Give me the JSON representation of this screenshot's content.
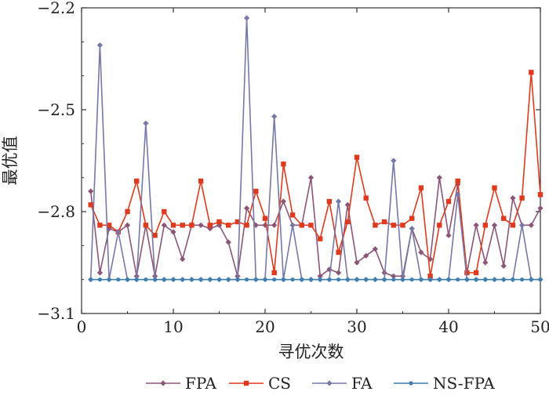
{
  "chart_data": {
    "type": "line",
    "xlabel": "寻优次数",
    "ylabel": "最优值",
    "xlim": [
      0,
      50
    ],
    "ylim": [
      -3.1,
      -2.2
    ],
    "xticks": [
      "0",
      "10",
      "20",
      "30",
      "40",
      "50"
    ],
    "yticks": [
      "-2.2",
      "-2.5",
      "-2.8",
      "-3.1"
    ],
    "yticks_display": [
      "−2.2",
      "−2.5",
      "−2.8",
      "−3.1"
    ],
    "legend_position": "bottom",
    "x": [
      1,
      2,
      3,
      4,
      5,
      6,
      7,
      8,
      9,
      10,
      11,
      12,
      13,
      14,
      15,
      16,
      17,
      18,
      19,
      20,
      21,
      22,
      23,
      24,
      25,
      26,
      27,
      28,
      29,
      30,
      31,
      32,
      33,
      34,
      35,
      36,
      37,
      38,
      39,
      40,
      41,
      42,
      43,
      44,
      45,
      46,
      47,
      48,
      49,
      50
    ],
    "series": [
      {
        "name": "FPA",
        "color": "#8b5577",
        "marker": "diamond",
        "values": [
          -2.74,
          -2.98,
          -2.85,
          -2.86,
          -2.84,
          -2.99,
          -2.84,
          -2.99,
          -2.84,
          -2.86,
          -2.94,
          -2.84,
          -2.84,
          -2.85,
          -2.84,
          -2.89,
          -2.99,
          -2.79,
          -2.84,
          -2.84,
          -2.84,
          -2.77,
          -2.84,
          -2.84,
          -2.7,
          -2.99,
          -2.97,
          -2.98,
          -2.78,
          -2.95,
          -2.93,
          -2.91,
          -2.98,
          -2.99,
          -2.99,
          -2.85,
          -2.92,
          -2.94,
          -2.7,
          -2.87,
          -2.72,
          -2.98,
          -2.84,
          -2.95,
          -2.84,
          -2.96,
          -2.76,
          -2.84,
          -2.84,
          -2.79
        ]
      },
      {
        "name": "CS",
        "color": "#e03a1e",
        "marker": "square",
        "values": [
          -2.78,
          -2.84,
          -2.84,
          -2.86,
          -2.8,
          -2.71,
          -2.84,
          -2.87,
          -2.8,
          -2.84,
          -2.84,
          -2.84,
          -2.71,
          -2.84,
          -2.83,
          -2.84,
          -2.83,
          -2.84,
          -2.74,
          -2.82,
          -2.98,
          -2.66,
          -2.81,
          -2.84,
          -2.84,
          -2.88,
          -2.77,
          -2.92,
          -2.83,
          -2.64,
          -2.76,
          -2.84,
          -2.83,
          -2.84,
          -2.84,
          -2.82,
          -2.73,
          -2.99,
          -2.84,
          -2.77,
          -2.71,
          -2.98,
          -2.98,
          -2.84,
          -2.73,
          -2.82,
          -2.84,
          -2.76,
          -2.39,
          -2.75
        ]
      },
      {
        "name": "FA",
        "color": "#7678a8",
        "marker": "diamond",
        "values": [
          -3.0,
          -2.31,
          -3.0,
          -2.86,
          -3.0,
          -3.0,
          -2.54,
          -3.0,
          -3.0,
          -3.0,
          -3.0,
          -3.0,
          -3.0,
          -3.0,
          -3.0,
          -3.0,
          -3.0,
          -2.23,
          -3.0,
          -3.0,
          -2.52,
          -3.0,
          -2.84,
          -3.0,
          -3.0,
          -3.0,
          -3.0,
          -2.77,
          -3.0,
          -3.0,
          -3.0,
          -3.0,
          -3.0,
          -2.65,
          -3.0,
          -2.85,
          -3.0,
          -3.0,
          -3.0,
          -3.0,
          -2.75,
          -3.0,
          -3.0,
          -3.0,
          -3.0,
          -3.0,
          -3.0,
          -2.84,
          -3.0,
          -3.0
        ]
      },
      {
        "name": "NS-FPA",
        "color": "#3f7fb0",
        "marker": "circle",
        "values": [
          -3.0,
          -3.0,
          -3.0,
          -3.0,
          -3.0,
          -3.0,
          -3.0,
          -3.0,
          -3.0,
          -3.0,
          -3.0,
          -3.0,
          -3.0,
          -3.0,
          -3.0,
          -3.0,
          -3.0,
          -3.0,
          -3.0,
          -3.0,
          -3.0,
          -3.0,
          -3.0,
          -3.0,
          -3.0,
          -3.0,
          -3.0,
          -3.0,
          -3.0,
          -3.0,
          -3.0,
          -3.0,
          -3.0,
          -3.0,
          -3.0,
          -3.0,
          -3.0,
          -3.0,
          -3.0,
          -3.0,
          -3.0,
          -3.0,
          -3.0,
          -3.0,
          -3.0,
          -3.0,
          -3.0,
          -3.0,
          -3.0,
          -3.0
        ]
      }
    ]
  }
}
